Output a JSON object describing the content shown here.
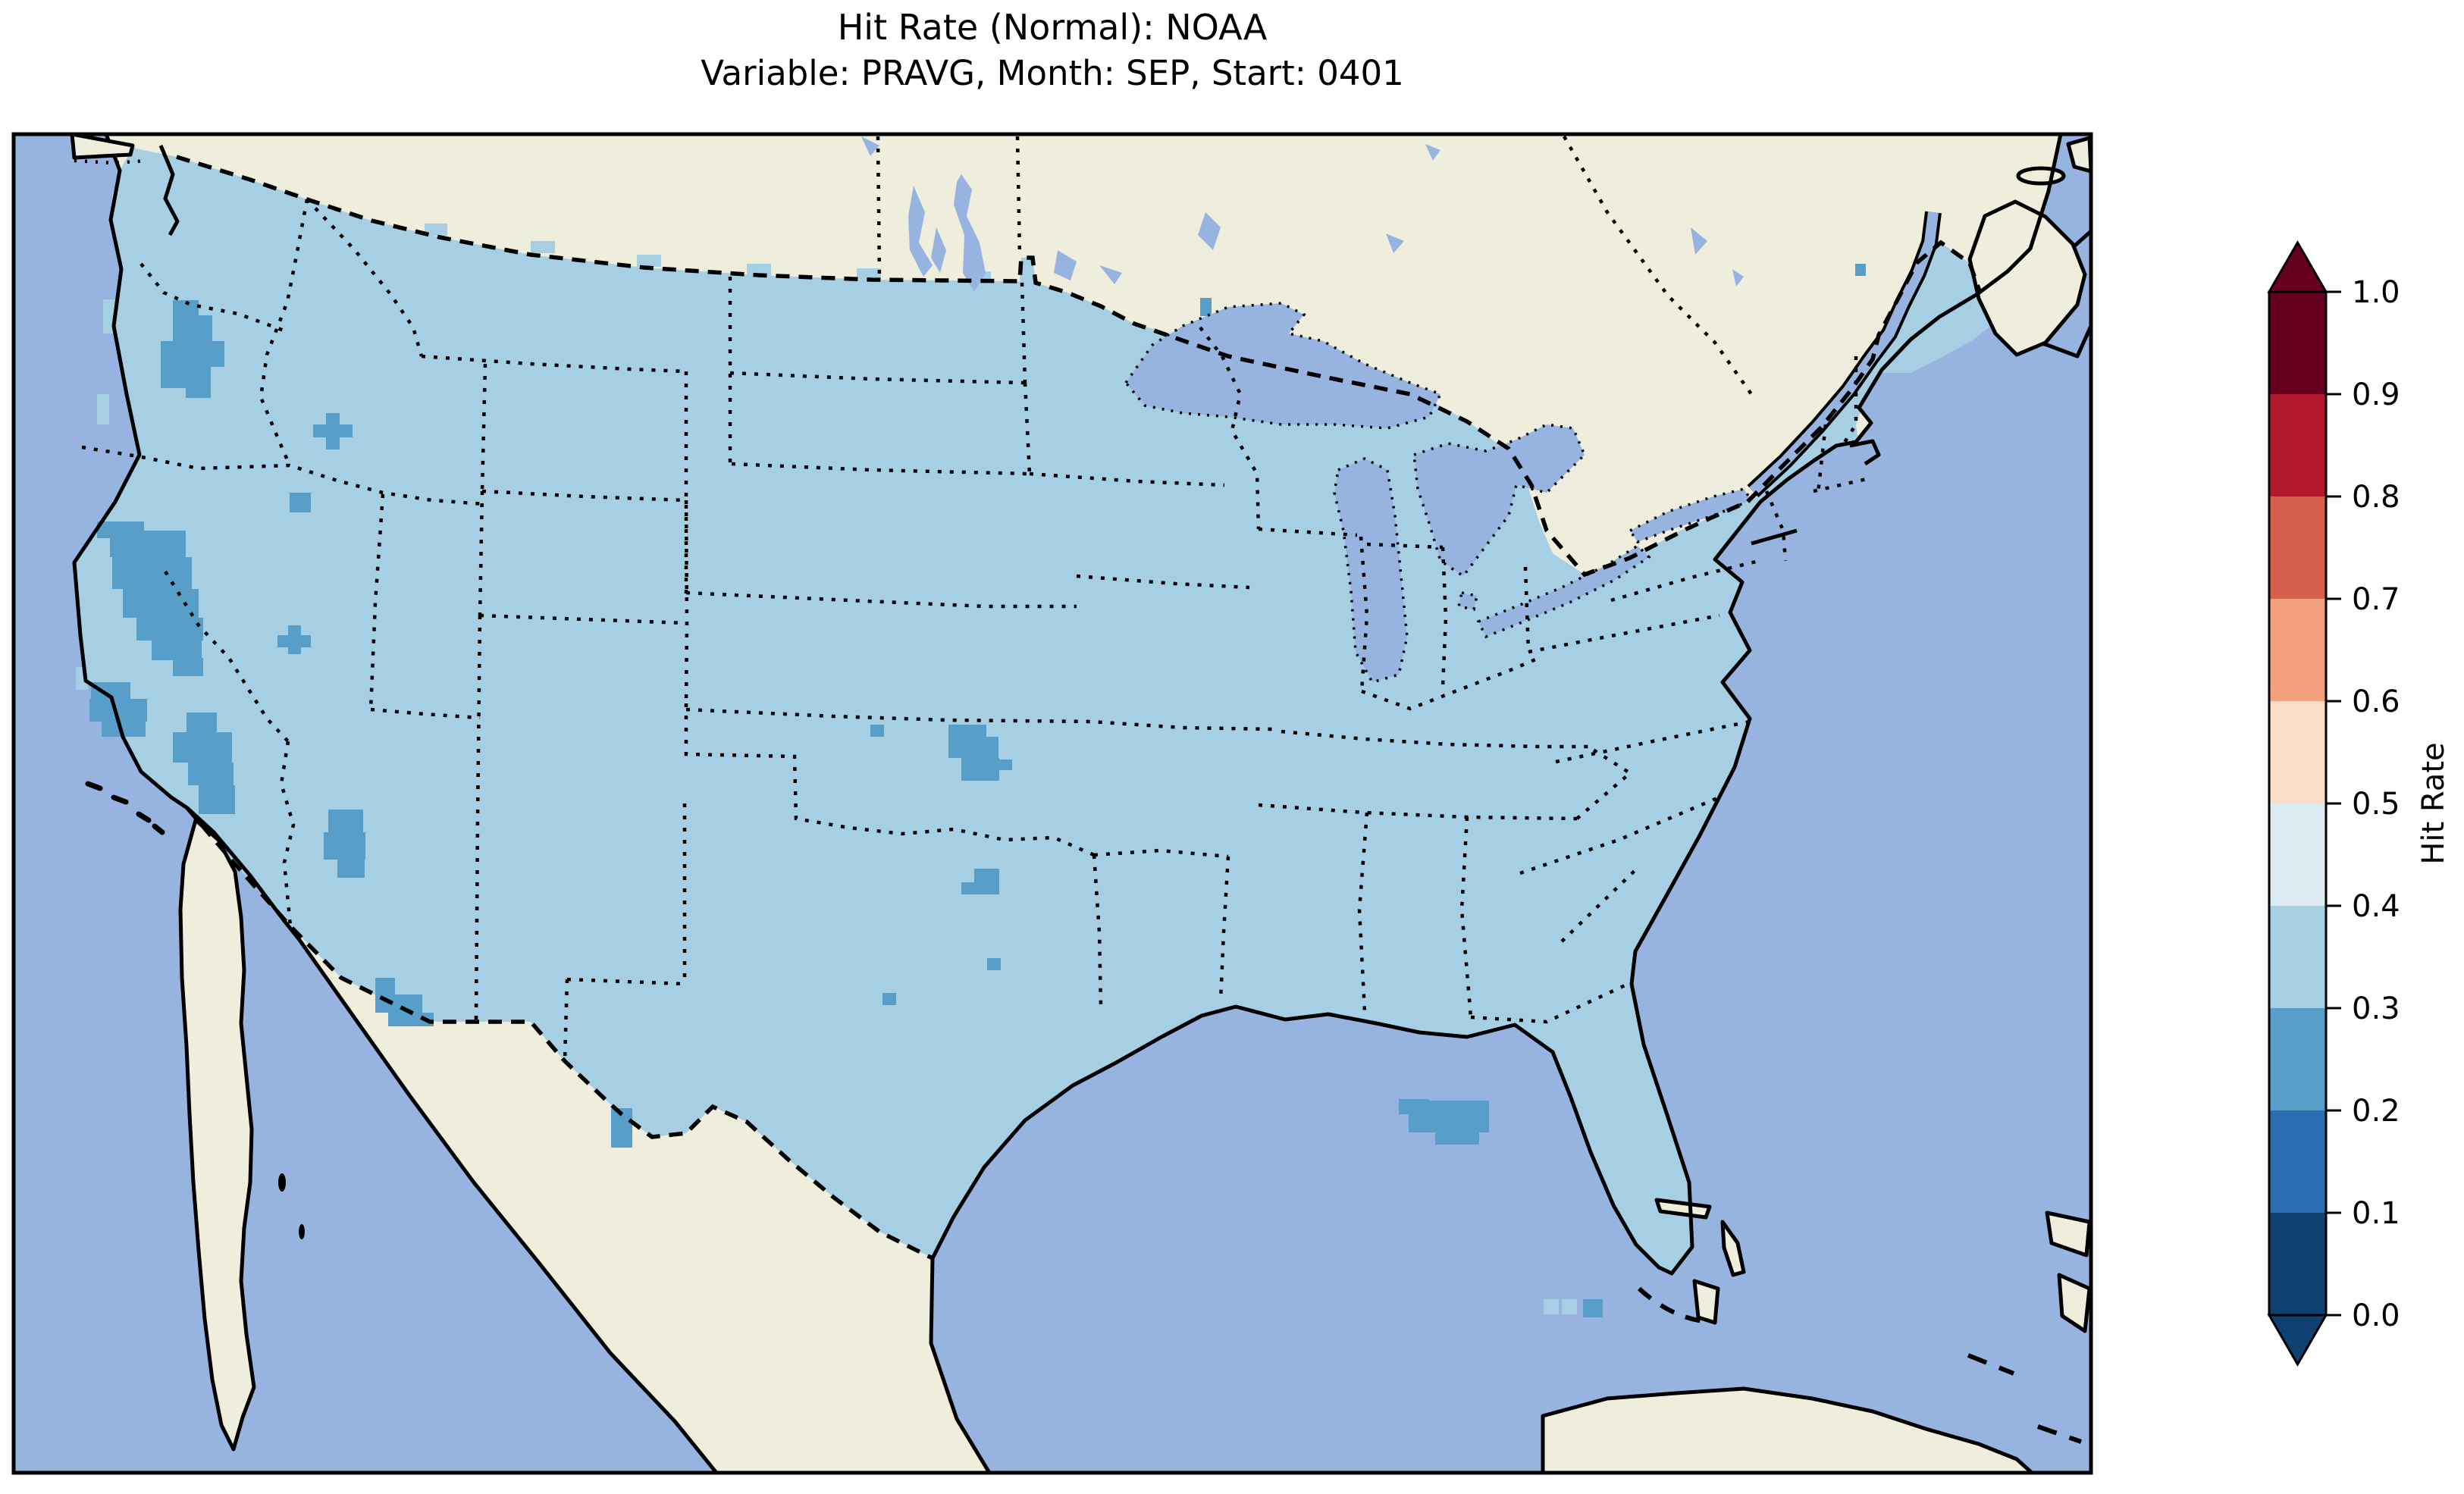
{
  "title": {
    "line1": "Hit Rate (Normal): NOAA",
    "line2": "Variable: PRAVG, Month: SEP, Start: 0401"
  },
  "chart_data": {
    "type": "heatmap",
    "title": "Hit Rate (Normal): NOAA",
    "subtitle": "Variable: PRAVG, Month: SEP, Start: 0401",
    "source": "NOAA",
    "variable": "PRAVG",
    "month": "SEP",
    "start": "0401",
    "metric": "Hit Rate (Normal)",
    "legend_position": "right",
    "colorbar": {
      "label": "Hit Rate",
      "range": [
        0.0,
        1.0
      ],
      "extend": "both",
      "ticks": [
        "1.0",
        "0.9",
        "0.8",
        "0.7",
        "0.6",
        "0.5",
        "0.4",
        "0.3",
        "0.2",
        "0.1",
        "0.0"
      ],
      "bins": [
        {
          "range": [
            0.0,
            0.1
          ],
          "color": "#10406f"
        },
        {
          "range": [
            0.1,
            0.2
          ],
          "color": "#2a6db0"
        },
        {
          "range": [
            0.2,
            0.3
          ],
          "color": "#579ec8"
        },
        {
          "range": [
            0.3,
            0.4
          ],
          "color": "#a7cfe4"
        },
        {
          "range": [
            0.4,
            0.5
          ],
          "color": "#dcebf2"
        },
        {
          "range": [
            0.5,
            0.6
          ],
          "color": "#fadcc8"
        },
        {
          "range": [
            0.6,
            0.7
          ],
          "color": "#f2a17c"
        },
        {
          "range": [
            0.7,
            0.8
          ],
          "color": "#d6604d"
        },
        {
          "range": [
            0.8,
            0.9
          ],
          "color": "#b2182b"
        },
        {
          "range": [
            0.9,
            1.0
          ],
          "color": "#67001f"
        }
      ]
    },
    "map": {
      "region": "Contiguous United States (Lambert conformal style view)",
      "dominant_bin": "0.3-0.4",
      "dominant_color": "#a7cfe4",
      "low_patch_bin": "0.2-0.3",
      "low_patch_color": "#579ec8",
      "low_patch_regions": [
        "central Oregon",
        "southern Idaho",
        "Utah-Nevada-Idaho corner",
        "central Nevada",
        "Sierra Nevada California",
        "southern California coast",
        "southeast California / Mojave",
        "northwest Arizona",
        "southern Arizona border",
        "central Kansas",
        "western Kansas",
        "central Oklahoma",
        "north Texas",
        "central Texas",
        "Big Bend Texas",
        "Florida panhandle",
        "south of Florida tip",
        "Maine coast"
      ]
    },
    "colors": {
      "ocean": "#97b4e1",
      "land": "#efeedd",
      "us_fill": "#a7cfe4",
      "low_fill": "#579ec8",
      "coastline": "#000000",
      "figure_background": "#ffffff"
    }
  }
}
